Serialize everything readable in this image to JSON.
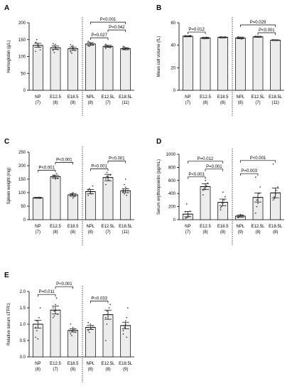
{
  "chart_data": [
    {
      "panel": "A",
      "type": "bar",
      "ylabel": "Hemoglobin (g/L)",
      "ylim": [
        0,
        200
      ],
      "yticks": [
        "0",
        "50",
        "100",
        "150",
        "200"
      ],
      "categories": [
        "NP",
        "E12.5",
        "E18.5",
        "NPL",
        "E12.5L",
        "E18.5L"
      ],
      "n": [
        "(7)",
        "(8)",
        "(8)",
        "(8)",
        "(7)",
        "(11)"
      ],
      "values": [
        133,
        126,
        123,
        137,
        130,
        123
      ],
      "sem": [
        6,
        5,
        5,
        4,
        3,
        3
      ],
      "points": [
        [
          142,
          140,
          135,
          128,
          120,
          115,
          150
        ],
        [
          138,
          132,
          128,
          125,
          120,
          118,
          112,
          136
        ],
        [
          135,
          130,
          126,
          122,
          118,
          114,
          110,
          132
        ],
        [
          145,
          142,
          140,
          138,
          135,
          132,
          130,
          136
        ],
        [
          136,
          133,
          130,
          128,
          126,
          124,
          130
        ],
        [
          130,
          128,
          126,
          124,
          122,
          122,
          121,
          120,
          124,
          125,
          123
        ]
      ],
      "comparisons": [
        {
          "from": 3,
          "to": 5,
          "label": "P<0.001"
        },
        {
          "from": 3,
          "to": 4,
          "label": "P=0.027"
        },
        {
          "from": 4,
          "to": 5,
          "label": "P=0.042"
        }
      ]
    },
    {
      "panel": "B",
      "type": "bar",
      "ylabel": "Mean cell volume (fL)",
      "ylim": [
        0,
        60
      ],
      "yticks": [
        "0",
        "20",
        "40",
        "60"
      ],
      "categories": [
        "NP",
        "E12.5",
        "E18.5",
        "NPL",
        "E12.5L",
        "E18.5L"
      ],
      "n": [
        "(7)",
        "(8)",
        "(8)",
        "(8)",
        "(7)",
        "(11)"
      ],
      "values": [
        48,
        46.5,
        47,
        46.5,
        47.5,
        44.5
      ],
      "sem": [
        0.5,
        0.6,
        0.5,
        0.8,
        0.5,
        0.4
      ],
      "points": [
        [
          48.5,
          48,
          48.2,
          47.8,
          48.6,
          47.5,
          48.1
        ],
        [
          47,
          46.5,
          46,
          47.2,
          46.8,
          46.2,
          45.8,
          46.6
        ],
        [
          47.5,
          47,
          46.8,
          47.3,
          46.9,
          47.2,
          46.6,
          47.1
        ],
        [
          47.5,
          46.8,
          46,
          45.5,
          46.5,
          47,
          46.2,
          46.6
        ],
        [
          48,
          47.5,
          47.8,
          47.2,
          47.6,
          47.4,
          47.7
        ],
        [
          45,
          44.5,
          44.8,
          44.2,
          44.6,
          44.9,
          44.3,
          44.7,
          44.4,
          44.6,
          44.5
        ]
      ],
      "comparisons": [
        {
          "from": 0,
          "to": 1,
          "label": "P=0.012"
        },
        {
          "from": 3,
          "to": 5,
          "label": "P=0.029"
        },
        {
          "from": 4,
          "to": 5,
          "label": "P<0.001"
        }
      ]
    },
    {
      "panel": "C",
      "type": "bar",
      "ylabel": "Spleen weight (mg)",
      "ylim": [
        0,
        250
      ],
      "yticks": [
        "0",
        "50",
        "100",
        "150",
        "200",
        "250"
      ],
      "categories": [
        "NP",
        "E12.5",
        "E18.5",
        "NPL",
        "E12.5L",
        "E18.5L"
      ],
      "n": [
        "(7)",
        "(8)",
        "(8)",
        "(8)",
        "(7)",
        "(11)"
      ],
      "values": [
        81,
        159,
        92,
        104,
        156,
        107
      ],
      "sem": [
        2,
        5,
        5,
        8,
        12,
        7
      ],
      "points": [
        [
          80,
          82,
          81,
          83,
          79,
          80,
          82
        ],
        [
          160,
          165,
          158,
          170,
          152,
          155,
          162,
          150
        ],
        [
          90,
          95,
          100,
          85,
          88,
          92,
          96,
          80
        ],
        [
          110,
          115,
          100,
          95,
          125,
          90,
          105,
          98
        ],
        [
          150,
          175,
          160,
          145,
          165,
          130,
          160
        ],
        [
          110,
          130,
          120,
          90,
          100,
          105,
          95,
          150,
          115,
          108,
          102
        ]
      ],
      "comparisons": [
        {
          "from": 0,
          "to": 1,
          "label": "P<0.001"
        },
        {
          "from": 1,
          "to": 2,
          "label": "P<0.001"
        },
        {
          "from": 3,
          "to": 4,
          "label": "P=0.001"
        },
        {
          "from": 4,
          "to": 5,
          "label": "P=0.001"
        }
      ]
    },
    {
      "panel": "D",
      "type": "bar",
      "ylabel": "Serum erythropoietin (pg/mL)",
      "ylim": [
        0,
        1000
      ],
      "yticks": [
        "0",
        "200",
        "400",
        "600",
        "800",
        "1000"
      ],
      "categories": [
        "NP",
        "E12.5",
        "E18.5",
        "NPL",
        "E12.5L",
        "E18.5L"
      ],
      "n": [
        "(7)",
        "(8)",
        "(8)",
        "(9)",
        "(8)",
        "(8)"
      ],
      "values": [
        85,
        505,
        265,
        55,
        340,
        410
      ],
      "sem": [
        40,
        45,
        50,
        15,
        70,
        75
      ],
      "points": [
        [
          20,
          30,
          40,
          50,
          130,
          120,
          240
        ],
        [
          450,
          480,
          500,
          520,
          560,
          380,
          460,
          600
        ],
        [
          150,
          200,
          250,
          300,
          350,
          180,
          260,
          420
        ],
        [
          30,
          40,
          50,
          60,
          70,
          45,
          55,
          80,
          65
        ],
        [
          100,
          200,
          300,
          400,
          500,
          650,
          300,
          250
        ],
        [
          300,
          350,
          400,
          450,
          500,
          850,
          320,
          380
        ]
      ],
      "comparisons": [
        {
          "from": 0,
          "to": 2,
          "label": "P=0.012"
        },
        {
          "from": 0,
          "to": 1,
          "label": "P<0.001"
        },
        {
          "from": 1,
          "to": 2,
          "label": "P=0.001"
        },
        {
          "from": 3,
          "to": 5,
          "label": "P<0.001"
        },
        {
          "from": 3,
          "to": 4,
          "label": "P=0.003"
        }
      ]
    },
    {
      "panel": "E",
      "type": "bar",
      "ylabel": "Relative serum sTFR1",
      "ylim": [
        0,
        2.0
      ],
      "yticks": [
        "0.0",
        "0.5",
        "1.0",
        "1.5",
        "2.0"
      ],
      "categories": [
        "NP",
        "E12.5",
        "E18.5",
        "NPL",
        "E12.5L",
        "E18.5L"
      ],
      "n": [
        "(8)",
        "(7)",
        "(8)",
        "(8)",
        "(8)",
        "(9)"
      ],
      "values": [
        1.0,
        1.43,
        0.81,
        0.9,
        1.29,
        0.96
      ],
      "sem": [
        0.12,
        0.12,
        0.05,
        0.06,
        0.14,
        0.1
      ],
      "points": [
        [
          0.6,
          0.8,
          1.0,
          1.2,
          1.5,
          0.9,
          1.1,
          0.55
        ],
        [
          1.2,
          1.4,
          1.6,
          1.8,
          1.3,
          1.5,
          1.25
        ],
        [
          0.7,
          0.8,
          0.9,
          0.85,
          0.75,
          1.0,
          0.65,
          0.8
        ],
        [
          0.8,
          0.9,
          1.0,
          0.85,
          0.95,
          1.05,
          0.75,
          0.9
        ],
        [
          0.5,
          1.0,
          1.3,
          1.5,
          1.6,
          1.2,
          1.4,
          1.3
        ],
        [
          0.7,
          0.9,
          1.0,
          1.2,
          1.5,
          0.8,
          0.95,
          1.1,
          0.6
        ]
      ],
      "comparisons": [
        {
          "from": 0,
          "to": 1,
          "label": "P=0.011"
        },
        {
          "from": 1,
          "to": 2,
          "label": "P<0.001"
        },
        {
          "from": 3,
          "to": 4,
          "label": "P=0.033"
        }
      ]
    }
  ]
}
